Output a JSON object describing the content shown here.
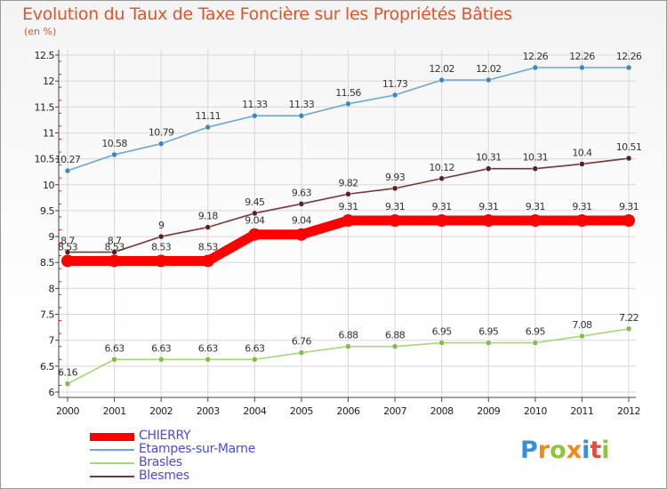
{
  "title": "Evolution du Taux de Taxe Foncière sur les Propriétés Bâties",
  "unit_label": "(en %)",
  "logo": {
    "text": "Proxiti",
    "letters": [
      "P",
      "r",
      "o",
      "x",
      "i",
      "t",
      "i"
    ],
    "colors": [
      "#3a8fd9",
      "#f08a1c",
      "#8cc63f",
      "#f08a1c",
      "#3a8fd9",
      "#e84b3c",
      "#8cc63f"
    ]
  },
  "chart_data": {
    "type": "line",
    "title": "Evolution du Taux de Taxe Foncière sur les Propriétés Bâties",
    "ylabel": "(en %)",
    "xlabel": "",
    "x": [
      "2000",
      "2001",
      "2002",
      "2003",
      "2004",
      "2005",
      "2006",
      "2007",
      "2008",
      "2009",
      "2010",
      "2011",
      "2012"
    ],
    "ylim": [
      6,
      12.5
    ],
    "yticks": [
      "6",
      "6.5",
      "7",
      "7.5",
      "8",
      "8.5",
      "9",
      "9.5",
      "10",
      "10.5",
      "11",
      "11.5",
      "12",
      "12.5"
    ],
    "ytick_values": [
      6,
      6.5,
      7,
      7.5,
      8,
      8.5,
      9,
      9.5,
      10,
      10.5,
      11,
      11.5,
      12,
      12.5
    ],
    "legend_position": "bottom-left",
    "series": [
      {
        "name": "Etampes-sur-Marne",
        "color": "#6aa6d6",
        "marker_color": "#3f86c4",
        "values": [
          10.27,
          10.58,
          10.79,
          11.11,
          11.33,
          11.33,
          11.56,
          11.73,
          12.02,
          12.02,
          12.26,
          12.26,
          12.26
        ],
        "labels": [
          "10.27",
          "10.58",
          "10.79",
          "11.11",
          "11.33",
          "11.33",
          "11.56",
          "11.73",
          "12.02",
          "12.02",
          "12.26",
          "12.26",
          "12.26"
        ]
      },
      {
        "name": "Blesmes",
        "color": "#7a3535",
        "marker_color": "#5a1f1f",
        "values": [
          8.7,
          8.7,
          9,
          9.18,
          9.45,
          9.63,
          9.82,
          9.93,
          10.12,
          10.31,
          10.31,
          10.4,
          10.51
        ],
        "labels": [
          "8.7",
          "8.7",
          "9",
          "9.18",
          "9.45",
          "9.63",
          "9.82",
          "9.93",
          "10.12",
          "10.31",
          "10.31",
          "10.4",
          "10.51"
        ]
      },
      {
        "name": "CHIERRY",
        "color": "#ff0000",
        "marker_color": "#ff0000",
        "values": [
          8.53,
          8.53,
          8.53,
          8.53,
          9.04,
          9.04,
          9.31,
          9.31,
          9.31,
          9.31,
          9.31,
          9.31,
          9.31
        ],
        "labels": [
          "8.53",
          "8.53",
          "8.53",
          "8.53",
          "9.04",
          "9.04",
          "9.31",
          "9.31",
          "9.31",
          "9.31",
          "9.31",
          "9.31",
          "9.31"
        ]
      },
      {
        "name": "Brasles",
        "color": "#a6d67a",
        "marker_color": "#7cc04a",
        "values": [
          6.16,
          6.63,
          6.63,
          6.63,
          6.63,
          6.76,
          6.88,
          6.88,
          6.95,
          6.95,
          6.95,
          7.08,
          7.22
        ],
        "labels": [
          "6.16",
          "6.63",
          "6.63",
          "6.63",
          "6.63",
          "6.76",
          "6.88",
          "6.88",
          "6.95",
          "6.95",
          "6.95",
          "7.08",
          "7.22"
        ]
      }
    ],
    "legend": [
      {
        "name": "CHIERRY",
        "color": "#ff0000"
      },
      {
        "name": "Etampes-sur-Marne",
        "color": "#6aa6d6"
      },
      {
        "name": "Brasles",
        "color": "#a6d67a"
      },
      {
        "name": "Blesmes",
        "color": "#7a3535"
      }
    ]
  }
}
